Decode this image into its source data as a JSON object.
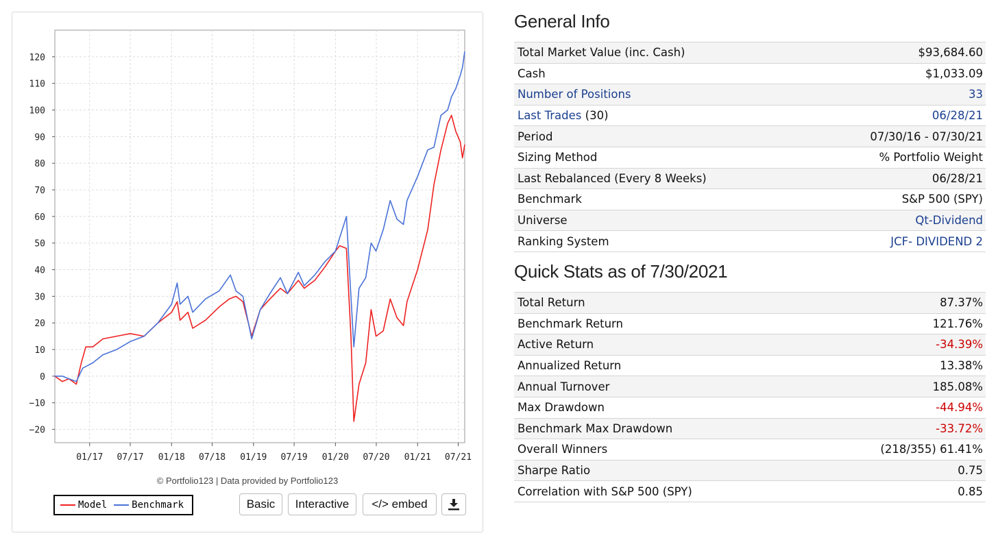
{
  "chart_panel": {
    "credit": "© Portfolio123 | Data provided by Portfolio123",
    "legend": [
      {
        "label": "Model",
        "color": "#ee2222"
      },
      {
        "label": "Benchmark",
        "color": "#4a72d8"
      }
    ],
    "buttons": {
      "basic": "Basic",
      "interactive": "Interactive",
      "embed": "</> embed",
      "download_icon": "download-icon"
    }
  },
  "chart_data": {
    "type": "line",
    "title": "",
    "xlabel": "",
    "ylabel": "",
    "x_ticks": [
      "01/17",
      "07/17",
      "01/18",
      "07/18",
      "01/19",
      "07/19",
      "01/20",
      "07/20",
      "01/21",
      "07/21"
    ],
    "y_ticks": [
      -20,
      -10,
      0,
      10,
      20,
      30,
      40,
      50,
      60,
      70,
      80,
      90,
      100,
      110,
      120
    ],
    "xlim": [
      "2016-07-30",
      "2021-07-30"
    ],
    "ylim": [
      -25,
      130
    ],
    "grid": true,
    "legend_position": "bottom-left",
    "series": [
      {
        "name": "Model",
        "color": "#ee2222",
        "points": [
          [
            "2016-07-30",
            0
          ],
          [
            "2016-09-01",
            -2
          ],
          [
            "2016-10-01",
            -1
          ],
          [
            "2016-11-03",
            -3
          ],
          [
            "2016-11-25",
            5
          ],
          [
            "2016-12-15",
            11
          ],
          [
            "2017-01-15",
            11
          ],
          [
            "2017-03-01",
            14
          ],
          [
            "2017-05-01",
            15
          ],
          [
            "2017-07-01",
            16
          ],
          [
            "2017-09-01",
            15
          ],
          [
            "2017-11-01",
            20
          ],
          [
            "2018-01-01",
            24
          ],
          [
            "2018-01-26",
            28
          ],
          [
            "2018-02-08",
            21
          ],
          [
            "2018-03-15",
            24
          ],
          [
            "2018-04-05",
            18
          ],
          [
            "2018-06-01",
            21
          ],
          [
            "2018-08-01",
            26
          ],
          [
            "2018-09-15",
            29
          ],
          [
            "2018-10-15",
            30
          ],
          [
            "2018-11-15",
            28
          ],
          [
            "2018-12-24",
            15
          ],
          [
            "2019-01-31",
            25
          ],
          [
            "2019-03-15",
            29
          ],
          [
            "2019-05-01",
            33
          ],
          [
            "2019-06-01",
            31
          ],
          [
            "2019-07-20",
            36
          ],
          [
            "2019-08-15",
            33
          ],
          [
            "2019-10-01",
            36
          ],
          [
            "2019-11-15",
            41
          ],
          [
            "2020-01-01",
            47
          ],
          [
            "2020-01-20",
            49
          ],
          [
            "2020-02-19",
            48
          ],
          [
            "2020-03-10",
            15
          ],
          [
            "2020-03-23",
            -17
          ],
          [
            "2020-04-15",
            -3
          ],
          [
            "2020-05-15",
            5
          ],
          [
            "2020-06-08",
            25
          ],
          [
            "2020-06-30",
            15
          ],
          [
            "2020-08-01",
            17
          ],
          [
            "2020-09-01",
            29
          ],
          [
            "2020-10-01",
            22
          ],
          [
            "2020-10-30",
            19
          ],
          [
            "2020-11-15",
            28
          ],
          [
            "2021-01-01",
            40
          ],
          [
            "2021-02-15",
            55
          ],
          [
            "2021-03-15",
            72
          ],
          [
            "2021-04-15",
            85
          ],
          [
            "2021-05-15",
            95
          ],
          [
            "2021-06-01",
            98
          ],
          [
            "2021-06-20",
            92
          ],
          [
            "2021-07-10",
            88
          ],
          [
            "2021-07-20",
            82
          ],
          [
            "2021-07-30",
            87
          ]
        ]
      },
      {
        "name": "Benchmark",
        "color": "#4a72d8",
        "points": [
          [
            "2016-07-30",
            0
          ],
          [
            "2016-09-01",
            0
          ],
          [
            "2016-10-01",
            -1
          ],
          [
            "2016-11-03",
            -2
          ],
          [
            "2016-12-01",
            3
          ],
          [
            "2017-01-15",
            5
          ],
          [
            "2017-03-01",
            8
          ],
          [
            "2017-05-01",
            10
          ],
          [
            "2017-07-01",
            13
          ],
          [
            "2017-09-01",
            15
          ],
          [
            "2017-11-01",
            20
          ],
          [
            "2018-01-01",
            27
          ],
          [
            "2018-01-26",
            35
          ],
          [
            "2018-02-08",
            27
          ],
          [
            "2018-03-15",
            30
          ],
          [
            "2018-04-05",
            24
          ],
          [
            "2018-06-01",
            29
          ],
          [
            "2018-08-01",
            32
          ],
          [
            "2018-09-20",
            38
          ],
          [
            "2018-10-15",
            32
          ],
          [
            "2018-11-15",
            30
          ],
          [
            "2018-12-24",
            14
          ],
          [
            "2019-01-31",
            25
          ],
          [
            "2019-03-15",
            31
          ],
          [
            "2019-05-01",
            37
          ],
          [
            "2019-06-01",
            31
          ],
          [
            "2019-07-20",
            39
          ],
          [
            "2019-08-15",
            34
          ],
          [
            "2019-10-01",
            38
          ],
          [
            "2019-11-15",
            43
          ],
          [
            "2020-01-01",
            47
          ],
          [
            "2020-01-20",
            52
          ],
          [
            "2020-02-19",
            60
          ],
          [
            "2020-03-10",
            30
          ],
          [
            "2020-03-23",
            11
          ],
          [
            "2020-04-15",
            33
          ],
          [
            "2020-05-15",
            37
          ],
          [
            "2020-06-08",
            50
          ],
          [
            "2020-06-30",
            47
          ],
          [
            "2020-08-01",
            55
          ],
          [
            "2020-09-01",
            66
          ],
          [
            "2020-10-01",
            59
          ],
          [
            "2020-10-30",
            57
          ],
          [
            "2020-11-15",
            66
          ],
          [
            "2021-01-01",
            75
          ],
          [
            "2021-02-15",
            85
          ],
          [
            "2021-03-15",
            86
          ],
          [
            "2021-04-15",
            98
          ],
          [
            "2021-05-15",
            100
          ],
          [
            "2021-06-01",
            105
          ],
          [
            "2021-06-20",
            108
          ],
          [
            "2021-07-10",
            113
          ],
          [
            "2021-07-20",
            116
          ],
          [
            "2021-07-30",
            122
          ]
        ]
      }
    ]
  },
  "general_info": {
    "title": "General Info",
    "rows": [
      {
        "label": "Total Market Value (inc. Cash)",
        "value": "$93,684.60"
      },
      {
        "label": "Cash",
        "value": "$1,033.09"
      },
      {
        "label": "Number of Positions",
        "value": "33"
      },
      {
        "label": "Last Trades",
        "label_extra": " (30)",
        "value": "06/28/21"
      },
      {
        "label": "Period",
        "value": "07/30/16 - 07/30/21"
      },
      {
        "label": "Sizing Method",
        "value": "% Portfolio Weight"
      },
      {
        "label": "Last Rebalanced (Every 8 Weeks)",
        "value": "06/28/21"
      },
      {
        "label": "Benchmark",
        "value": "S&P 500 (SPY)"
      },
      {
        "label": "Universe",
        "value": "Qt-Dividend"
      },
      {
        "label": "Ranking System",
        "value": "JCF- DIVIDEND 2"
      }
    ]
  },
  "quick_stats": {
    "title": "Quick Stats as of 7/30/2021",
    "rows": [
      {
        "label": "Total Return",
        "value": "87.37%"
      },
      {
        "label": "Benchmark Return",
        "value": "121.76%"
      },
      {
        "label": "Active Return",
        "value": "-34.39%"
      },
      {
        "label": "Annualized Return",
        "value": "13.38%"
      },
      {
        "label": "Annual Turnover",
        "value": "185.08%"
      },
      {
        "label": "Max Drawdown",
        "value": "-44.94%"
      },
      {
        "label": "Benchmark Max Drawdown",
        "value": "-33.72%"
      },
      {
        "label": "Overall Winners",
        "value": "(218/355) 61.41%"
      },
      {
        "label": "Sharpe Ratio",
        "value": "0.75"
      },
      {
        "label": "Correlation with S&P 500 (SPY)",
        "value": "0.85"
      }
    ]
  },
  "colors": {
    "link": "#1a3f8f",
    "negative": "#cc0000"
  }
}
